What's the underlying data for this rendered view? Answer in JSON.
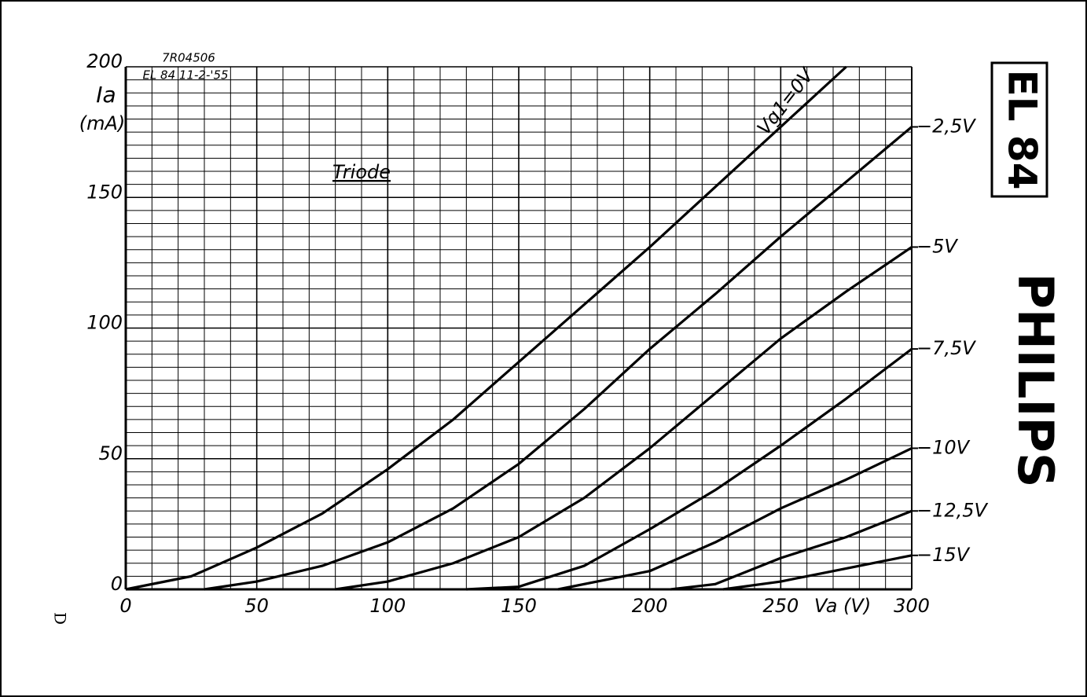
{
  "chart_data": {
    "type": "line",
    "code": "7R04506",
    "subcode": "EL 84  11-2-'55",
    "annotation": "Triode",
    "y_label": "Ia",
    "y_unit": "(mA)",
    "x_label": "Va (V)",
    "tube": "EL 84",
    "brand": "PHILIPS",
    "mark": "D",
    "xlim": [
      0,
      300
    ],
    "ylim": [
      0,
      200
    ],
    "xticks": [
      0,
      50,
      100,
      150,
      200,
      250,
      300
    ],
    "yticks": [
      0,
      50,
      100,
      150,
      200
    ],
    "x_minor_step": 10,
    "y_minor_step": 5,
    "grid": true,
    "color": "#000000",
    "series": [
      {
        "name": "Vg1=0V",
        "x": [
          0,
          25,
          50,
          75,
          100,
          125,
          150,
          175,
          200,
          225,
          250,
          275
        ],
        "values": [
          0,
          5,
          16,
          29,
          46,
          65,
          87,
          109,
          131,
          154,
          177,
          200
        ]
      },
      {
        "name": "−2,5V",
        "x": [
          30,
          50,
          75,
          100,
          125,
          150,
          175,
          200,
          225,
          250,
          275,
          300
        ],
        "values": [
          0,
          3,
          9,
          18,
          31,
          48,
          69,
          92,
          113,
          135,
          156,
          177
        ]
      },
      {
        "name": "−5V",
        "x": [
          80,
          100,
          125,
          150,
          175,
          200,
          225,
          250,
          275,
          300
        ],
        "values": [
          0,
          3,
          10,
          20,
          35,
          54,
          75,
          96,
          114,
          131
        ]
      },
      {
        "name": "−7,5V",
        "x": [
          130,
          150,
          175,
          200,
          225,
          250,
          275,
          300
        ],
        "values": [
          0,
          1,
          9,
          23,
          38,
          55,
          73,
          92
        ]
      },
      {
        "name": "−10V",
        "x": [
          165,
          200,
          225,
          250,
          275,
          300
        ],
        "values": [
          0,
          7,
          18,
          31,
          42,
          54
        ]
      },
      {
        "name": "−12,5V",
        "x": [
          208,
          225,
          250,
          275,
          300
        ],
        "values": [
          0,
          2,
          12,
          20,
          30
        ]
      },
      {
        "name": "−15V",
        "x": [
          228,
          250,
          275,
          300
        ],
        "values": [
          0,
          3,
          8,
          13
        ]
      }
    ]
  }
}
